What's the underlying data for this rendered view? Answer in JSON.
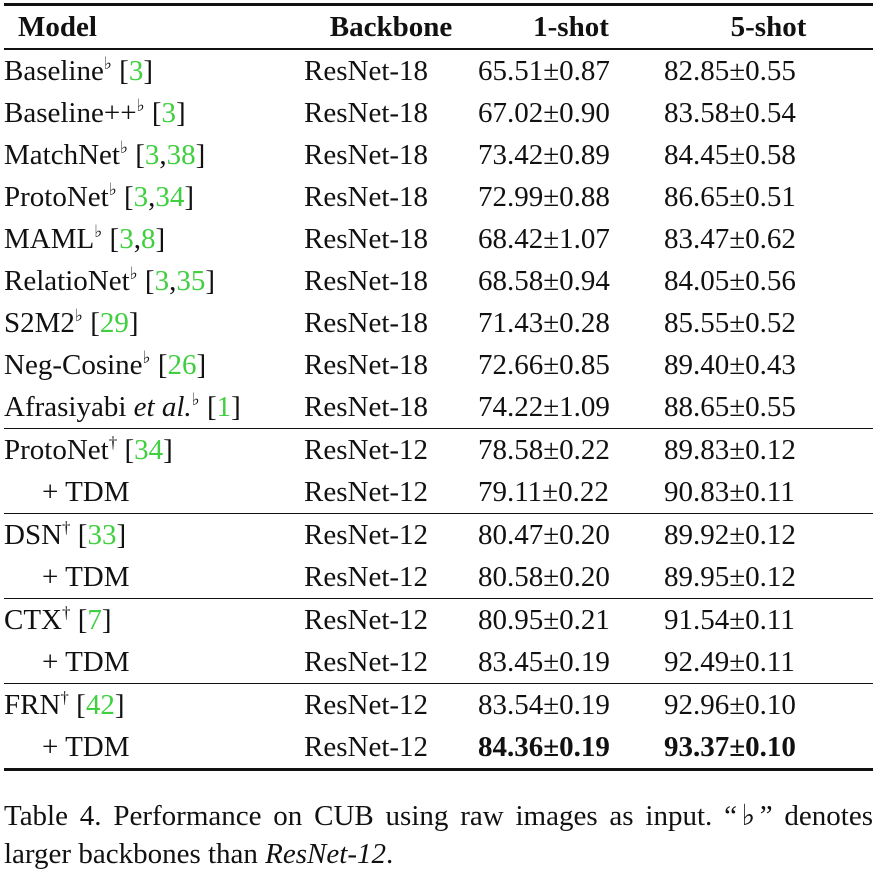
{
  "table": {
    "headers": [
      "Model",
      "Backbone",
      "1-shot",
      "5-shot"
    ],
    "rows": [
      {
        "model": "Baseline",
        "mark": "♭",
        "refs": [
          "3"
        ],
        "backbone": "ResNet-18",
        "shot1": "65.51±0.87",
        "shot5": "82.85±0.55"
      },
      {
        "model": "Baseline++",
        "mark": "♭",
        "refs": [
          "3"
        ],
        "backbone": "ResNet-18",
        "shot1": "67.02±0.90",
        "shot5": "83.58±0.54"
      },
      {
        "model": "MatchNet",
        "mark": "♭",
        "refs": [
          "3",
          "38"
        ],
        "backbone": "ResNet-18",
        "shot1": "73.42±0.89",
        "shot5": "84.45±0.58"
      },
      {
        "model": "ProtoNet",
        "mark": "♭",
        "refs": [
          "3",
          "34"
        ],
        "backbone": "ResNet-18",
        "shot1": "72.99±0.88",
        "shot5": "86.65±0.51"
      },
      {
        "model": "MAML",
        "mark": "♭",
        "refs": [
          "3",
          "8"
        ],
        "backbone": "ResNet-18",
        "shot1": "68.42±1.07",
        "shot5": "83.47±0.62"
      },
      {
        "model": "RelatioNet",
        "mark": "♭",
        "refs": [
          "3",
          "35"
        ],
        "backbone": "ResNet-18",
        "shot1": "68.58±0.94",
        "shot5": "84.05±0.56"
      },
      {
        "model": "S2M2",
        "mark": "♭",
        "refs": [
          "29"
        ],
        "backbone": "ResNet-18",
        "shot1": "71.43±0.28",
        "shot5": "85.55±0.52"
      },
      {
        "model": "Neg-Cosine",
        "mark": "♭",
        "refs": [
          "26"
        ],
        "backbone": "ResNet-18",
        "shot1": "72.66±0.85",
        "shot5": "89.40±0.43"
      },
      {
        "model": "Afrasiyabi",
        "model_italic": "et al.",
        "mark": "♭",
        "refs": [
          "1"
        ],
        "backbone": "ResNet-18",
        "shot1": "74.22±1.09",
        "shot5": "88.65±0.55"
      },
      {
        "model": "ProtoNet",
        "mark": "†",
        "refs": [
          "34"
        ],
        "backbone": "ResNet-12",
        "shot1": "78.58±0.22",
        "shot5": "89.83±0.12",
        "group_start": true
      },
      {
        "model": "+ TDM",
        "sub": true,
        "backbone": "ResNet-12",
        "shot1": "79.11±0.22",
        "shot5": "90.83±0.11"
      },
      {
        "model": "DSN",
        "mark": "†",
        "refs": [
          "33"
        ],
        "backbone": "ResNet-12",
        "shot1": "80.47±0.20",
        "shot5": "89.92±0.12",
        "group_start": true
      },
      {
        "model": "+ TDM",
        "sub": true,
        "backbone": "ResNet-12",
        "shot1": "80.58±0.20",
        "shot5": "89.95±0.12"
      },
      {
        "model": "CTX",
        "mark": "†",
        "refs": [
          "7"
        ],
        "backbone": "ResNet-12",
        "shot1": "80.95±0.21",
        "shot5": "91.54±0.11",
        "group_start": true
      },
      {
        "model": "+ TDM",
        "sub": true,
        "backbone": "ResNet-12",
        "shot1": "83.45±0.19",
        "shot5": "92.49±0.11"
      },
      {
        "model": "FRN",
        "mark": "†",
        "refs": [
          "42"
        ],
        "backbone": "ResNet-12",
        "shot1": "83.54±0.19",
        "shot5": "92.96±0.10",
        "group_start": true
      },
      {
        "model": "+ TDM",
        "sub": true,
        "backbone": "ResNet-12",
        "shot1": "84.36±0.19",
        "shot5": "93.37±0.10",
        "bold_shot1": true,
        "bold_shot5": true
      }
    ]
  },
  "caption": {
    "part1": "Table 4. Performance on CUB using raw images as input. “♭” denotes larger backbones than ",
    "italic": "ResNet-12",
    "part2": "."
  },
  "colors": {
    "reference": "#3fcf3f",
    "text": "#111111"
  }
}
